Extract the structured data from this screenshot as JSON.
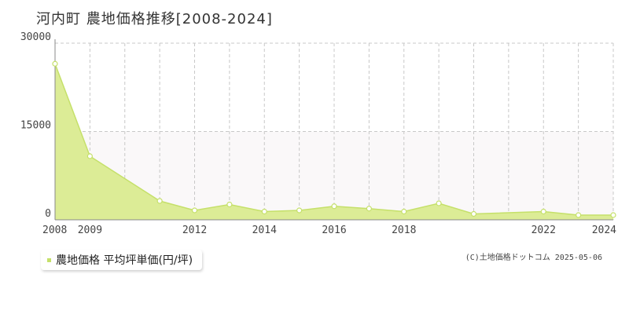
{
  "title": "河内町 農地価格推移[2008-2024]",
  "legend": {
    "label": "農地価格 平均坪単価(円/坪)"
  },
  "credit": "(C)土地価格ドットコム 2025-05-06",
  "colors": {
    "line": "#c5e06a",
    "fill": "#dcec96",
    "band": "#faf8f9",
    "grid": "#c8c8c8",
    "marker": "#ffffff"
  },
  "chart_data": {
    "type": "area",
    "title": "河内町 農地価格推移[2008-2024]",
    "xlabel": "",
    "ylabel": "",
    "xlim": [
      2008,
      2024
    ],
    "ylim": [
      0,
      30000
    ],
    "yticks": [
      0,
      15000,
      30000
    ],
    "xticks": [
      2008,
      2009,
      2012,
      2014,
      2016,
      2018,
      2022,
      2024
    ],
    "x_gridlines": [
      2008,
      2009,
      2010,
      2011,
      2012,
      2013,
      2014,
      2015,
      2016,
      2017,
      2018,
      2019,
      2020,
      2021,
      2022,
      2023,
      2024
    ],
    "grid": true,
    "legend_position": "bottom-left",
    "series": [
      {
        "name": "農地価格 平均坪単価(円/坪)",
        "x": [
          2008,
          2009,
          2011,
          2012,
          2013,
          2014,
          2015,
          2016,
          2017,
          2018,
          2019,
          2020,
          2022,
          2023,
          2024
        ],
        "y": [
          26500,
          10800,
          3200,
          1600,
          2600,
          1400,
          1600,
          2300,
          1900,
          1400,
          2800,
          1000,
          1400,
          800,
          800
        ]
      }
    ]
  }
}
